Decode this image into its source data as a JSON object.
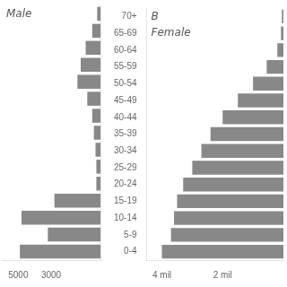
{
  "chart_data": [
    {
      "type": "bar",
      "orientation": "horizontal",
      "categories": [
        "70+",
        "65-69",
        "60-64",
        "55-59",
        "50-54",
        "45-49",
        "40-44",
        "35-39",
        "30-34",
        "25-29",
        "20-24",
        "15-19",
        "10-14",
        "5-9",
        "0-4"
      ],
      "values": [
        200,
        500,
        900,
        1200,
        1400,
        800,
        500,
        400,
        300,
        250,
        250,
        2800,
        4800,
        3200,
        4900
      ],
      "color": "#888888",
      "xlim": [
        6000,
        0
      ],
      "xticks": [
        5000,
        3000
      ],
      "grid": false,
      "tick_labels": "x",
      "annotations": [
        "Male"
      ]
    },
    {
      "type": "bar",
      "orientation": "horizontal",
      "categories": [
        "70+",
        "65-69",
        "60-64",
        "55-59",
        "50-54",
        "45-49",
        "40-44",
        "35-39",
        "30-34",
        "25-29",
        "20-24",
        "15-19",
        "10-14",
        "5-9",
        "0-4"
      ],
      "values": [
        50000,
        80000,
        200000,
        550000,
        1000000,
        1500000,
        2000000,
        2400000,
        2700000,
        3000000,
        3300000,
        3500000,
        3600000,
        3700000,
        4000000
      ],
      "color": "#888888",
      "xlim": [
        4500000,
        0
      ],
      "xticks": [
        {
          "value": 4000000,
          "label": "4 mil"
        },
        {
          "value": 2000000,
          "label": "2 mil"
        }
      ],
      "grid": false,
      "annotations": [
        "B",
        "Female"
      ]
    }
  ]
}
